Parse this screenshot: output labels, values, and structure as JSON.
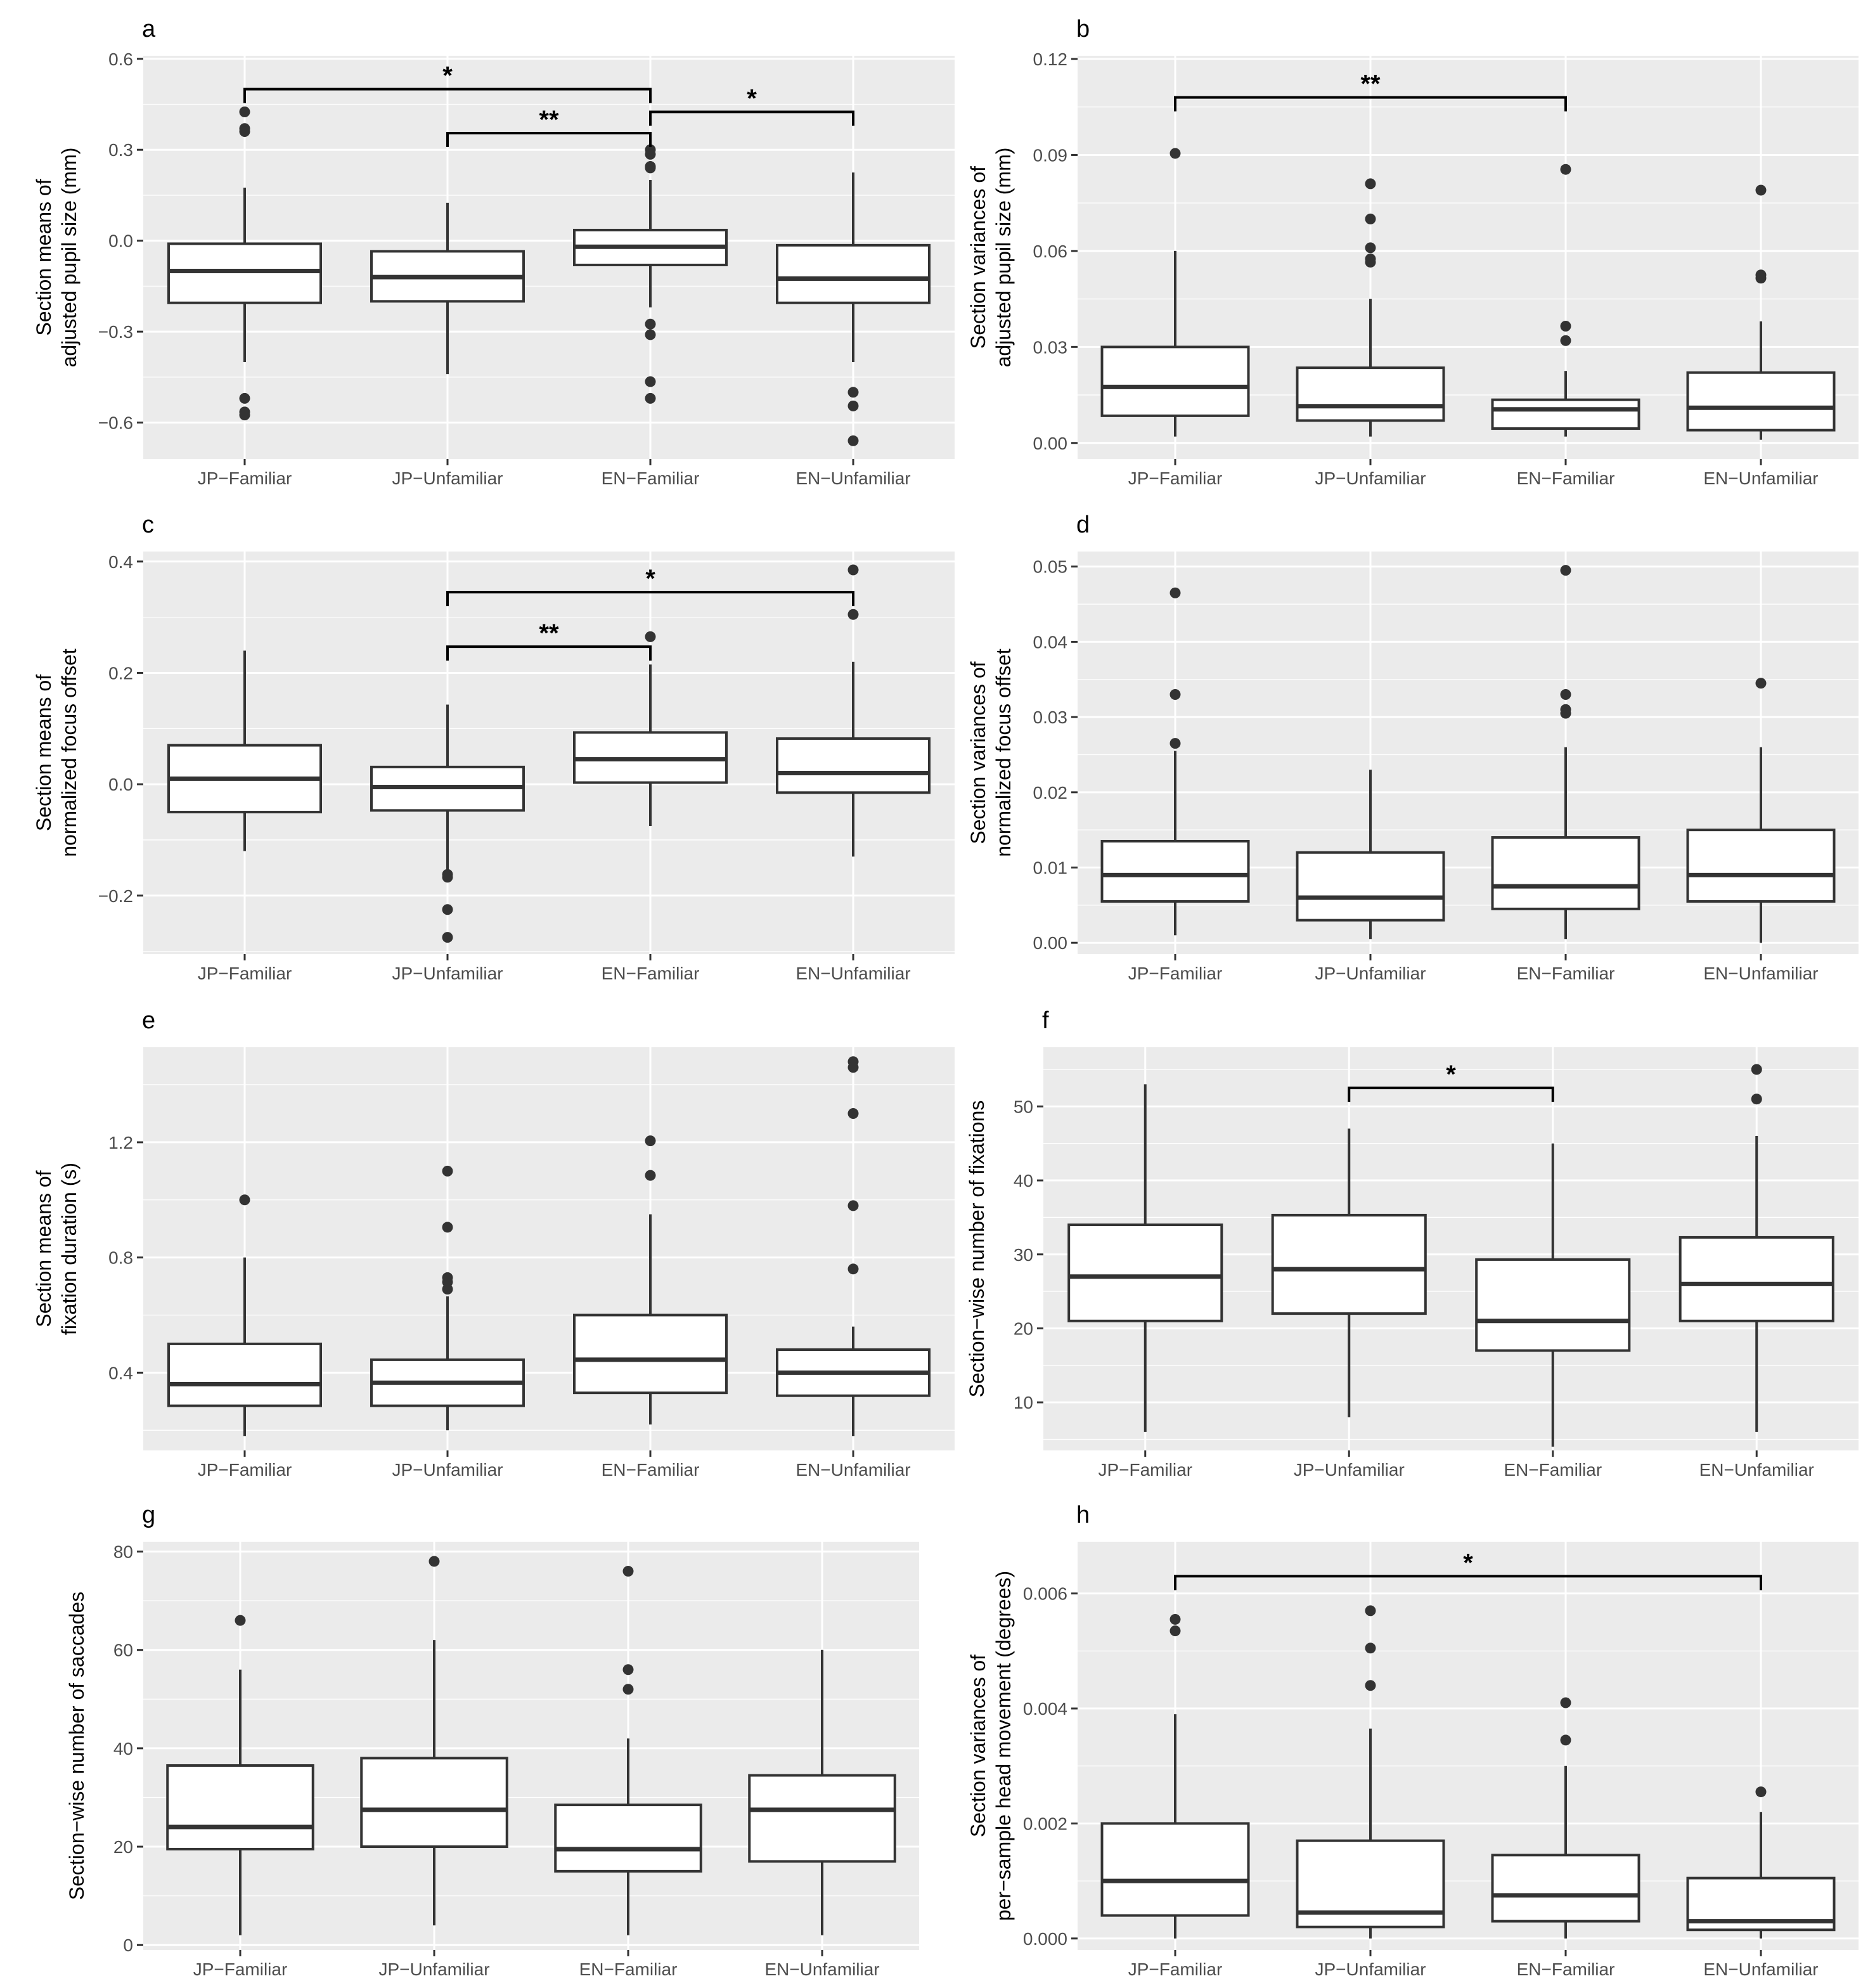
{
  "chart_data": [
    {
      "id": "a",
      "panel_label": "a",
      "type": "box",
      "ylabel": [
        "Section means of",
        "adjusted pupil size (mm)"
      ],
      "categories": [
        "JP−Familiar",
        "JP−Unfamiliar",
        "EN−Familiar",
        "EN−Unfamiliar"
      ],
      "ylim": [
        -0.72,
        0.61
      ],
      "y_ticks": [
        -0.6,
        -0.3,
        0.0,
        0.3,
        0.6
      ],
      "y_tick_labels": [
        "−0.6",
        "−0.3",
        "0.0",
        "0.3",
        "0.6"
      ],
      "boxes": [
        {
          "category": "JP−Familiar",
          "lower_whisker": -0.4,
          "q1": -0.205,
          "median": -0.1,
          "q3": -0.01,
          "upper_whisker": 0.175,
          "outliers": [
            0.425,
            0.37,
            0.36,
            -0.52,
            -0.565,
            -0.575
          ]
        },
        {
          "category": "JP−Unfamiliar",
          "lower_whisker": -0.44,
          "q1": -0.2,
          "median": -0.12,
          "q3": -0.035,
          "upper_whisker": 0.125,
          "outliers": []
        },
        {
          "category": "EN−Familiar",
          "lower_whisker": -0.22,
          "q1": -0.08,
          "median": -0.02,
          "q3": 0.035,
          "upper_whisker": 0.2,
          "outliers": [
            0.3,
            0.285,
            0.245,
            0.24,
            -0.275,
            -0.31,
            -0.465,
            -0.52
          ]
        },
        {
          "category": "EN−Unfamiliar",
          "lower_whisker": -0.4,
          "q1": -0.205,
          "median": -0.125,
          "q3": -0.015,
          "upper_whisker": 0.225,
          "outliers": [
            -0.5,
            -0.545,
            -0.66
          ]
        }
      ],
      "significance": [
        {
          "from": "JP−Familiar",
          "to": "EN−Familiar",
          "y": 0.5,
          "label": "*"
        },
        {
          "from": "JP−Unfamiliar",
          "to": "EN−Familiar",
          "y": 0.355,
          "label": "**"
        },
        {
          "from": "EN−Familiar",
          "to": "EN−Unfamiliar",
          "y": 0.425,
          "label": "*"
        }
      ]
    },
    {
      "id": "b",
      "panel_label": "b",
      "type": "box",
      "ylabel": [
        "Section variances of",
        "adjusted pupil size (mm)"
      ],
      "categories": [
        "JP−Familiar",
        "JP−Unfamiliar",
        "EN−Familiar",
        "EN−Unfamiliar"
      ],
      "ylim": [
        -0.005,
        0.121
      ],
      "y_ticks": [
        0.0,
        0.03,
        0.06,
        0.09,
        0.12
      ],
      "y_tick_labels": [
        "0.00",
        "0.03",
        "0.06",
        "0.09",
        "0.12"
      ],
      "boxes": [
        {
          "category": "JP−Familiar",
          "lower_whisker": 0.002,
          "q1": 0.0085,
          "median": 0.0175,
          "q3": 0.03,
          "upper_whisker": 0.06,
          "outliers": [
            0.0905
          ]
        },
        {
          "category": "JP−Unfamiliar",
          "lower_whisker": 0.002,
          "q1": 0.007,
          "median": 0.0115,
          "q3": 0.0235,
          "upper_whisker": 0.045,
          "outliers": [
            0.081,
            0.07,
            0.061,
            0.0575,
            0.0565
          ]
        },
        {
          "category": "EN−Familiar",
          "lower_whisker": 0.002,
          "q1": 0.0045,
          "median": 0.0105,
          "q3": 0.0135,
          "upper_whisker": 0.0225,
          "outliers": [
            0.0855,
            0.0365,
            0.032
          ]
        },
        {
          "category": "EN−Unfamiliar",
          "lower_whisker": 0.001,
          "q1": 0.004,
          "median": 0.011,
          "q3": 0.022,
          "upper_whisker": 0.038,
          "outliers": [
            0.079,
            0.0525,
            0.0515
          ]
        }
      ],
      "significance": [
        {
          "from": "JP−Familiar",
          "to": "EN−Familiar",
          "y": 0.108,
          "label": "**"
        }
      ]
    },
    {
      "id": "c",
      "panel_label": "c",
      "type": "box",
      "ylabel": [
        "Section means of",
        "normalized focus offset"
      ],
      "categories": [
        "JP−Familiar",
        "JP−Unfamiliar",
        "EN−Familiar",
        "EN−Unfamiliar"
      ],
      "ylim": [
        -0.305,
        0.418
      ],
      "y_ticks": [
        -0.2,
        0.0,
        0.2,
        0.4
      ],
      "y_tick_labels": [
        "−0.2",
        "0.0",
        "0.2",
        "0.4"
      ],
      "boxes": [
        {
          "category": "JP−Familiar",
          "lower_whisker": -0.12,
          "q1": -0.05,
          "median": 0.01,
          "q3": 0.07,
          "upper_whisker": 0.24,
          "outliers": []
        },
        {
          "category": "JP−Unfamiliar",
          "lower_whisker": -0.155,
          "q1": -0.047,
          "median": -0.005,
          "q3": 0.031,
          "upper_whisker": 0.143,
          "outliers": [
            -0.162,
            -0.167,
            -0.225,
            -0.275
          ]
        },
        {
          "category": "EN−Familiar",
          "lower_whisker": -0.075,
          "q1": 0.003,
          "median": 0.045,
          "q3": 0.093,
          "upper_whisker": 0.215,
          "outliers": [
            0.265
          ]
        },
        {
          "category": "EN−Unfamiliar",
          "lower_whisker": -0.13,
          "q1": -0.015,
          "median": 0.02,
          "q3": 0.082,
          "upper_whisker": 0.22,
          "outliers": [
            0.385,
            0.305
          ]
        }
      ],
      "significance": [
        {
          "from": "JP−Unfamiliar",
          "to": "EN−Unfamiliar",
          "y": 0.345,
          "label": "*"
        },
        {
          "from": "JP−Unfamiliar",
          "to": "EN−Familiar",
          "y": 0.247,
          "label": "**"
        }
      ]
    },
    {
      "id": "d",
      "panel_label": "d",
      "type": "box",
      "ylabel": [
        "Section variances of",
        "normalized focus offset"
      ],
      "categories": [
        "JP−Familiar",
        "JP−Unfamiliar",
        "EN−Familiar",
        "EN−Unfamiliar"
      ],
      "ylim": [
        -0.0015,
        0.052
      ],
      "y_ticks": [
        0.0,
        0.01,
        0.02,
        0.03,
        0.04,
        0.05
      ],
      "y_tick_labels": [
        "0.00",
        "0.01",
        "0.02",
        "0.03",
        "0.04",
        "0.05"
      ],
      "boxes": [
        {
          "category": "JP−Familiar",
          "lower_whisker": 0.001,
          "q1": 0.0055,
          "median": 0.009,
          "q3": 0.0135,
          "upper_whisker": 0.0255,
          "outliers": [
            0.0465,
            0.033,
            0.0265
          ]
        },
        {
          "category": "JP−Unfamiliar",
          "lower_whisker": 0.0005,
          "q1": 0.003,
          "median": 0.006,
          "q3": 0.012,
          "upper_whisker": 0.023,
          "outliers": []
        },
        {
          "category": "EN−Familiar",
          "lower_whisker": 0.0005,
          "q1": 0.0045,
          "median": 0.0075,
          "q3": 0.014,
          "upper_whisker": 0.026,
          "outliers": [
            0.0495,
            0.033,
            0.031,
            0.0305
          ]
        },
        {
          "category": "EN−Unfamiliar",
          "lower_whisker": 0.0,
          "q1": 0.0055,
          "median": 0.009,
          "q3": 0.015,
          "upper_whisker": 0.026,
          "outliers": [
            0.0345
          ]
        }
      ],
      "significance": []
    },
    {
      "id": "e",
      "panel_label": "e",
      "type": "box",
      "ylabel": [
        "Section means of",
        "fixation duration (s)"
      ],
      "categories": [
        "JP−Familiar",
        "JP−Unfamiliar",
        "EN−Familiar",
        "EN−Unfamiliar"
      ],
      "ylim": [
        0.13,
        1.53
      ],
      "y_ticks": [
        0.4,
        0.8,
        1.2
      ],
      "y_tick_labels": [
        "0.4",
        "0.8",
        "1.2"
      ],
      "boxes": [
        {
          "category": "JP−Familiar",
          "lower_whisker": 0.18,
          "q1": 0.285,
          "median": 0.36,
          "q3": 0.5,
          "upper_whisker": 0.8,
          "outliers": [
            1.0
          ]
        },
        {
          "category": "JP−Unfamiliar",
          "lower_whisker": 0.2,
          "q1": 0.285,
          "median": 0.365,
          "q3": 0.445,
          "upper_whisker": 0.665,
          "outliers": [
            1.1,
            0.905,
            0.73,
            0.715,
            0.69
          ]
        },
        {
          "category": "EN−Familiar",
          "lower_whisker": 0.22,
          "q1": 0.33,
          "median": 0.445,
          "q3": 0.6,
          "upper_whisker": 0.95,
          "outliers": [
            1.205,
            1.085
          ]
        },
        {
          "category": "EN−Unfamiliar",
          "lower_whisker": 0.18,
          "q1": 0.32,
          "median": 0.4,
          "q3": 0.48,
          "upper_whisker": 0.56,
          "outliers": [
            1.48,
            1.46,
            1.3,
            0.98,
            0.76
          ]
        }
      ],
      "significance": []
    },
    {
      "id": "f",
      "panel_label": "f",
      "type": "box",
      "ylabel": [
        "Section−wise number of fixations"
      ],
      "categories": [
        "JP−Familiar",
        "JP−Unfamiliar",
        "EN−Familiar",
        "EN−Unfamiliar"
      ],
      "ylim": [
        3.5,
        58
      ],
      "y_ticks": [
        10,
        20,
        30,
        40,
        50
      ],
      "y_tick_labels": [
        "10",
        "20",
        "30",
        "40",
        "50"
      ],
      "boxes": [
        {
          "category": "JP−Familiar",
          "lower_whisker": 6,
          "q1": 21,
          "median": 27,
          "q3": 34,
          "upper_whisker": 53,
          "outliers": []
        },
        {
          "category": "JP−Unfamiliar",
          "lower_whisker": 8,
          "q1": 22,
          "median": 28,
          "q3": 35.3,
          "upper_whisker": 47,
          "outliers": []
        },
        {
          "category": "EN−Familiar",
          "lower_whisker": 4,
          "q1": 17,
          "median": 21,
          "q3": 29.3,
          "upper_whisker": 45,
          "outliers": []
        },
        {
          "category": "EN−Unfamiliar",
          "lower_whisker": 6,
          "q1": 21,
          "median": 26,
          "q3": 32.3,
          "upper_whisker": 46,
          "outliers": [
            55,
            51
          ]
        }
      ],
      "significance": [
        {
          "from": "JP−Unfamiliar",
          "to": "EN−Familiar",
          "y": 52.5,
          "label": "*"
        }
      ]
    },
    {
      "id": "g",
      "panel_label": "g",
      "type": "box",
      "ylabel": [
        "Section−wise number of saccades"
      ],
      "categories": [
        "JP−Familiar",
        "JP−Unfamiliar",
        "EN−Familiar",
        "EN−Unfamiliar"
      ],
      "ylim": [
        -1,
        82
      ],
      "y_ticks": [
        0,
        20,
        40,
        60,
        80
      ],
      "y_tick_labels": [
        "0",
        "20",
        "40",
        "60",
        "80"
      ],
      "boxes": [
        {
          "category": "JP−Familiar",
          "lower_whisker": 2,
          "q1": 19.5,
          "median": 24,
          "q3": 36.5,
          "upper_whisker": 56,
          "outliers": [
            66
          ]
        },
        {
          "category": "JP−Unfamiliar",
          "lower_whisker": 4,
          "q1": 20,
          "median": 27.5,
          "q3": 38,
          "upper_whisker": 62,
          "outliers": [
            78
          ]
        },
        {
          "category": "EN−Familiar",
          "lower_whisker": 2,
          "q1": 15,
          "median": 19.5,
          "q3": 28.5,
          "upper_whisker": 42,
          "outliers": [
            76,
            56,
            52
          ]
        },
        {
          "category": "EN−Unfamiliar",
          "lower_whisker": 2,
          "q1": 17,
          "median": 27.5,
          "q3": 34.5,
          "upper_whisker": 60,
          "outliers": []
        }
      ],
      "significance": []
    },
    {
      "id": "h",
      "panel_label": "h",
      "type": "box",
      "ylabel": [
        "Section variances of",
        "per−sample head movement (degrees)"
      ],
      "categories": [
        "JP−Familiar",
        "JP−Unfamiliar",
        "EN−Familiar",
        "EN−Unfamiliar"
      ],
      "ylim": [
        -0.0002,
        0.0069
      ],
      "y_ticks": [
        0.0,
        0.002,
        0.004,
        0.006
      ],
      "y_tick_labels": [
        "0.000",
        "0.002",
        "0.004",
        "0.006"
      ],
      "boxes": [
        {
          "category": "JP−Familiar",
          "lower_whisker": 0.0,
          "q1": 0.0004,
          "median": 0.001,
          "q3": 0.002,
          "upper_whisker": 0.0039,
          "outliers": [
            0.00555,
            0.00535
          ]
        },
        {
          "category": "JP−Unfamiliar",
          "lower_whisker": 0.0,
          "q1": 0.0002,
          "median": 0.00045,
          "q3": 0.0017,
          "upper_whisker": 0.00365,
          "outliers": [
            0.0057,
            0.00505,
            0.0044
          ]
        },
        {
          "category": "EN−Familiar",
          "lower_whisker": 0.0,
          "q1": 0.0003,
          "median": 0.00075,
          "q3": 0.00145,
          "upper_whisker": 0.003,
          "outliers": [
            0.0041,
            0.00345
          ]
        },
        {
          "category": "EN−Unfamiliar",
          "lower_whisker": 0.0,
          "q1": 0.00015,
          "median": 0.0003,
          "q3": 0.00105,
          "upper_whisker": 0.0022,
          "outliers": [
            0.00255
          ]
        }
      ],
      "significance": [
        {
          "from": "JP−Familiar",
          "to": "EN−Unfamiliar",
          "y": 0.0063,
          "label": "*"
        }
      ]
    }
  ]
}
